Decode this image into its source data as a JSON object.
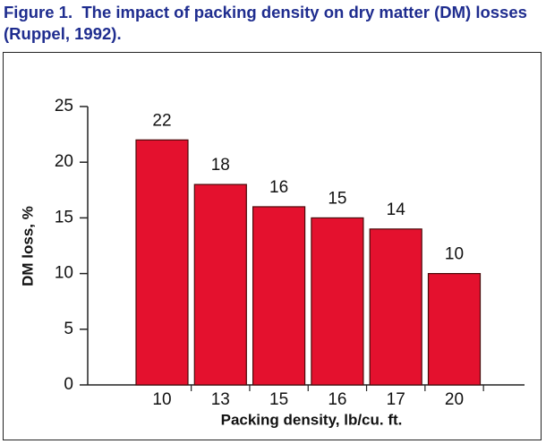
{
  "chart_data": {
    "type": "bar",
    "title": "Figure 1.  The impact of packing density on dry matter (DM) losses\n(Ruppel, 1992).",
    "x_label": "Packing density, lb/cu. ft.",
    "y_label": "DM loss, %",
    "categories": [
      "10",
      "13",
      "15",
      "16",
      "17",
      "20"
    ],
    "values": [
      22,
      18,
      16,
      15,
      14,
      10
    ],
    "color": "#e4112e",
    "ylim": [
      0,
      25
    ],
    "yticks": [
      0,
      5,
      10,
      15,
      20,
      25
    ],
    "grid": false
  }
}
